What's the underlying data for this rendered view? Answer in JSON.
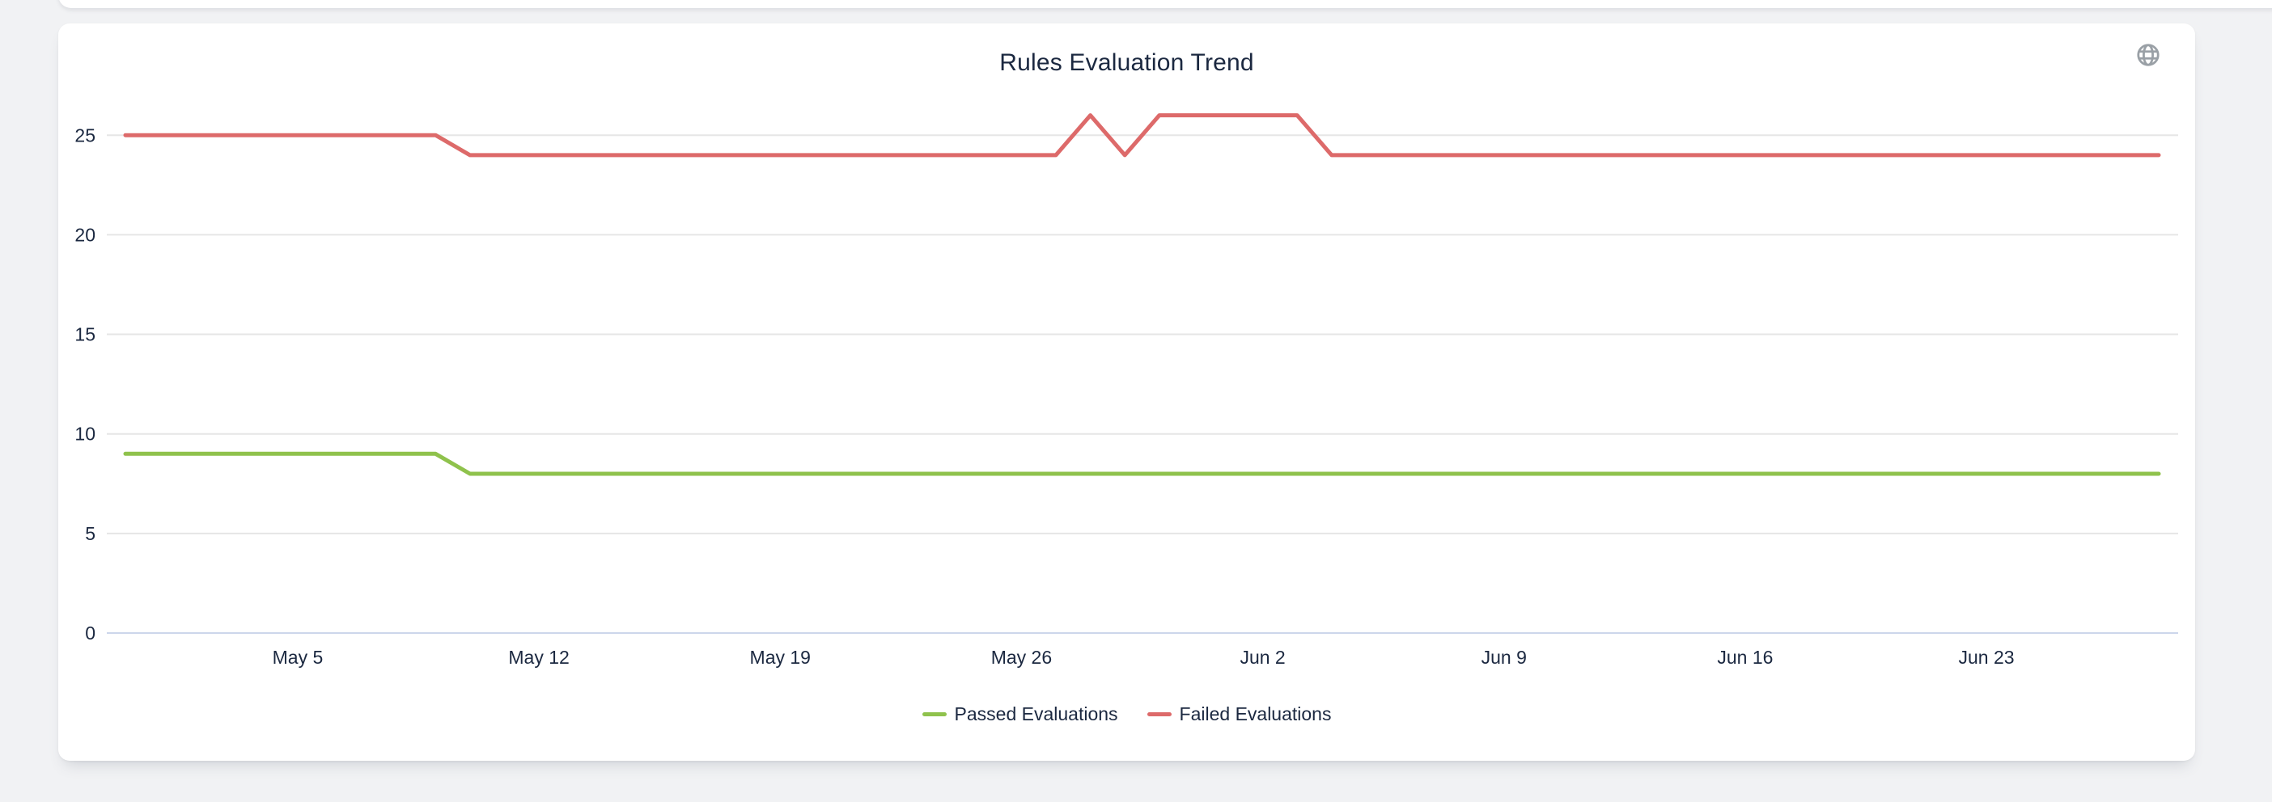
{
  "page": {
    "background_color": "#f1f2f4"
  },
  "card": {
    "globe_icon": "globe-icon",
    "globe_icon_color": "#9aa0a6"
  },
  "chart_data": {
    "type": "line",
    "title": "Rules Evaluation Trend",
    "xlabel": "",
    "ylabel": "",
    "x": [
      "Apr 30",
      "May 1",
      "May 2",
      "May 3",
      "May 4",
      "May 5",
      "May 6",
      "May 7",
      "May 8",
      "May 9",
      "May 10",
      "May 11",
      "May 12",
      "May 13",
      "May 14",
      "May 15",
      "May 16",
      "May 17",
      "May 18",
      "May 19",
      "May 20",
      "May 21",
      "May 22",
      "May 23",
      "May 24",
      "May 25",
      "May 26",
      "May 27",
      "May 28",
      "May 29",
      "May 30",
      "May 31",
      "Jun 1",
      "Jun 2",
      "Jun 3",
      "Jun 4",
      "Jun 5",
      "Jun 6",
      "Jun 7",
      "Jun 8",
      "Jun 9",
      "Jun 10",
      "Jun 11",
      "Jun 12",
      "Jun 13",
      "Jun 14",
      "Jun 15",
      "Jun 16",
      "Jun 17",
      "Jun 18",
      "Jun 19",
      "Jun 20",
      "Jun 21",
      "Jun 22",
      "Jun 23",
      "Jun 24",
      "Jun 25",
      "Jun 26",
      "Jun 27",
      "Jun 28"
    ],
    "series": [
      {
        "name": "Passed Evaluations",
        "color": "#8fc24c",
        "values": [
          9,
          9,
          9,
          9,
          9,
          9,
          9,
          9,
          9,
          9,
          8,
          8,
          8,
          8,
          8,
          8,
          8,
          8,
          8,
          8,
          8,
          8,
          8,
          8,
          8,
          8,
          8,
          8,
          8,
          8,
          8,
          8,
          8,
          8,
          8,
          8,
          8,
          8,
          8,
          8,
          8,
          8,
          8,
          8,
          8,
          8,
          8,
          8,
          8,
          8,
          8,
          8,
          8,
          8,
          8,
          8,
          8,
          8,
          8,
          8
        ]
      },
      {
        "name": "Failed Evaluations",
        "color": "#dd6a6a",
        "values": [
          25,
          25,
          25,
          25,
          25,
          25,
          25,
          25,
          25,
          25,
          24,
          24,
          24,
          24,
          24,
          24,
          24,
          24,
          24,
          24,
          24,
          24,
          24,
          24,
          24,
          24,
          24,
          24,
          26,
          24,
          26,
          26,
          26,
          26,
          26,
          24,
          24,
          24,
          24,
          24,
          24,
          24,
          24,
          24,
          24,
          24,
          24,
          24,
          24,
          24,
          24,
          24,
          24,
          24,
          24,
          24,
          24,
          24,
          24,
          24
        ]
      }
    ],
    "xticks": {
      "labels": [
        "May 5",
        "May 12",
        "May 19",
        "May 26",
        "Jun 2",
        "Jun 9",
        "Jun 16",
        "Jun 23"
      ],
      "indices": [
        5,
        12,
        19,
        26,
        33,
        40,
        47,
        54
      ]
    },
    "yticks": [
      0,
      5,
      10,
      15,
      20,
      25
    ],
    "ylim": [
      0,
      27
    ],
    "grid": true,
    "legend_position": "bottom",
    "colors": {
      "grid": "#e6e6e6",
      "axis_line": "#ccd6eb",
      "text": "#1b2840"
    }
  }
}
